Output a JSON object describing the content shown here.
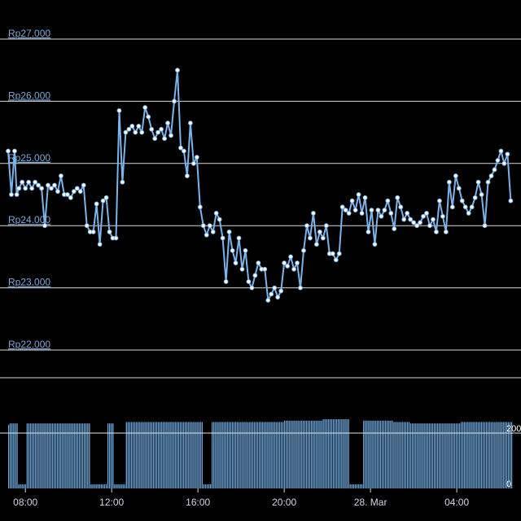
{
  "chart_data": {
    "type": "line",
    "title": "",
    "xlabel": "",
    "ylabel": "",
    "ylim": [
      21600,
      27400
    ],
    "grid": true,
    "price_axis": {
      "ticks": [
        {
          "value": 27000,
          "label": "Rp27.000"
        },
        {
          "value": 26000,
          "label": "Rp26.000"
        },
        {
          "value": 25000,
          "label": "Rp25.000"
        },
        {
          "value": 24000,
          "label": "Rp24.000"
        },
        {
          "value": 23000,
          "label": "Rp23.000"
        },
        {
          "value": 22000,
          "label": "Rp22.000"
        }
      ]
    },
    "time_axis": {
      "start_hour": 7.2,
      "end_hour": 30.6,
      "ticks": [
        {
          "hour": 8,
          "label": "08:00"
        },
        {
          "hour": 12,
          "label": "12:00"
        },
        {
          "hour": 16,
          "label": "16:00"
        },
        {
          "hour": 20,
          "label": "20:00"
        },
        {
          "hour": 24,
          "label": "28. Mar"
        },
        {
          "hour": 28,
          "label": "04:00"
        }
      ]
    },
    "volume_axis": {
      "ticks": [
        {
          "value": 200,
          "label": "200"
        },
        {
          "value": 0,
          "label": "0"
        }
      ],
      "max": 260
    },
    "series": [
      {
        "color": "#7ab4ea",
        "marker_fill": "#ffffff",
        "x": [
          7.2,
          7.35,
          7.5,
          7.6,
          7.7,
          7.85,
          8.0,
          8.15,
          8.3,
          8.45,
          8.6,
          8.75,
          8.9,
          9.05,
          9.2,
          9.35,
          9.5,
          9.65,
          9.8,
          9.95,
          10.1,
          10.25,
          10.4,
          10.55,
          10.7,
          10.85,
          11.0,
          11.15,
          11.3,
          11.45,
          11.6,
          11.75,
          11.9,
          12.05,
          12.2,
          12.35,
          12.5,
          12.65,
          12.8,
          12.95,
          13.1,
          13.25,
          13.4,
          13.55,
          13.7,
          13.85,
          14.0,
          14.15,
          14.3,
          14.45,
          14.6,
          14.75,
          14.9,
          15.05,
          15.2,
          15.35,
          15.5,
          15.65,
          15.8,
          15.95,
          16.1,
          16.25,
          16.4,
          16.55,
          16.7,
          16.85,
          17.0,
          17.15,
          17.3,
          17.45,
          17.6,
          17.75,
          17.9,
          18.05,
          18.2,
          18.35,
          18.5,
          18.65,
          18.8,
          18.95,
          19.1,
          19.25,
          19.4,
          19.55,
          19.7,
          19.85,
          20.0,
          20.15,
          20.3,
          20.45,
          20.6,
          20.75,
          20.9,
          21.05,
          21.2,
          21.35,
          21.5,
          21.65,
          21.8,
          21.95,
          22.1,
          22.25,
          22.4,
          22.55,
          22.7,
          22.85,
          23.0,
          23.15,
          23.3,
          23.45,
          23.6,
          23.75,
          23.9,
          24.05,
          24.2,
          24.35,
          24.5,
          24.65,
          24.8,
          24.95,
          25.1,
          25.25,
          25.4,
          25.55,
          25.7,
          25.85,
          26.0,
          26.15,
          26.3,
          26.45,
          26.6,
          26.75,
          26.9,
          27.05,
          27.2,
          27.35,
          27.5,
          27.65,
          27.8,
          27.95,
          28.1,
          28.25,
          28.4,
          28.55,
          28.7,
          28.85,
          29.0,
          29.15,
          29.3,
          29.45,
          29.6,
          29.75,
          29.9,
          30.05,
          30.2,
          30.35,
          30.5
        ],
        "y": [
          25200,
          24500,
          25200,
          24500,
          24600,
          24700,
          24600,
          24700,
          24600,
          24700,
          24650,
          24600,
          24000,
          24650,
          24600,
          24650,
          24550,
          24800,
          24500,
          24500,
          24450,
          24550,
          24600,
          24550,
          24650,
          24000,
          23900,
          23900,
          24350,
          23700,
          24400,
          24450,
          23900,
          23800,
          23800,
          25850,
          24700,
          25500,
          25550,
          25600,
          25500,
          25600,
          25500,
          25900,
          25750,
          25550,
          25400,
          25500,
          25550,
          25400,
          25650,
          25450,
          26000,
          26500,
          25250,
          25200,
          24800,
          25650,
          25000,
          25100,
          24300,
          24000,
          23850,
          24000,
          23900,
          24200,
          24100,
          23800,
          23100,
          23900,
          23600,
          23400,
          23800,
          23300,
          23600,
          23100,
          23000,
          23200,
          23400,
          23300,
          23300,
          22800,
          22900,
          23000,
          22850,
          22950,
          23400,
          23350,
          23500,
          23300,
          23400,
          23000,
          23600,
          24000,
          23800,
          24200,
          23700,
          23900,
          23800,
          24000,
          23550,
          23550,
          23450,
          23550,
          24300,
          24250,
          24200,
          24400,
          24250,
          24500,
          24200,
          24450,
          23900,
          24250,
          23700,
          24250,
          24150,
          24250,
          24400,
          24200,
          23950,
          24450,
          24300,
          24100,
          24200,
          24100,
          24050,
          24000,
          24050,
          24150,
          24200,
          24000,
          24100,
          23900,
          24400,
          24150,
          23900,
          24700,
          24300,
          24800,
          24600,
          24400,
          24300,
          24200,
          24300,
          24450,
          24700,
          24500,
          24000,
          24700,
          24800,
          24900,
          25050,
          25200,
          25000,
          25150,
          24400
        ],
        "volume": [
          230,
          235,
          235,
          235,
          235,
          235,
          235,
          235,
          235,
          235,
          235,
          235,
          235,
          235,
          235,
          235,
          235,
          235,
          235,
          235,
          235,
          235,
          235,
          235,
          235,
          235,
          235,
          235,
          235,
          235,
          235,
          235,
          235,
          235,
          235,
          240,
          240,
          240,
          240,
          240,
          240,
          240,
          240,
          240,
          240,
          240,
          240,
          240,
          240,
          240,
          240,
          240,
          240,
          240,
          240,
          240,
          240,
          240,
          240,
          240,
          240,
          240,
          240,
          240,
          240,
          240,
          240,
          240,
          240,
          240,
          240,
          240,
          240,
          240,
          240,
          240,
          240,
          240,
          240,
          240,
          240,
          240,
          240,
          240,
          240,
          240,
          245,
          245,
          245,
          245,
          245,
          245,
          245,
          245,
          245,
          245,
          245,
          245,
          250,
          250,
          250,
          250,
          250,
          250,
          250,
          250,
          250,
          250,
          250,
          250,
          245,
          245,
          245,
          245,
          245,
          245,
          245,
          245,
          245,
          245,
          240,
          240,
          240,
          240,
          240,
          235,
          235,
          235,
          235,
          235,
          235,
          235,
          235,
          235,
          235,
          235,
          235,
          235,
          235,
          235,
          235,
          240,
          240,
          240,
          240,
          240,
          240,
          240,
          240,
          240,
          240,
          240,
          240,
          240,
          240,
          240,
          240
        ]
      }
    ],
    "volume_gaps": [
      [
        7.6,
        8.0
      ],
      [
        11.0,
        11.8
      ],
      [
        12.1,
        12.6
      ],
      [
        16.2,
        16.6
      ],
      [
        23.0,
        23.6
      ]
    ]
  }
}
